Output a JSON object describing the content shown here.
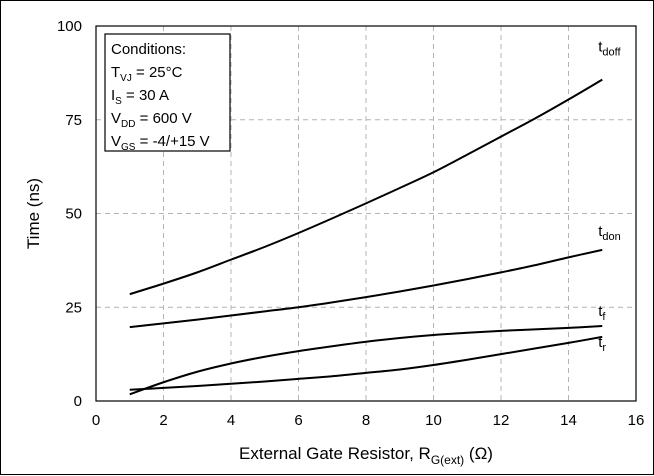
{
  "chart_data": {
    "type": "line",
    "title": "",
    "xlabel": {
      "main": "External Gate Resistor, R",
      "sub": "G(ext)",
      "unit": "(Ω)"
    },
    "ylabel": "Time (ns)",
    "xlim": [
      0,
      16
    ],
    "ylim": [
      0,
      100
    ],
    "xticks": [
      0,
      2,
      4,
      6,
      8,
      10,
      12,
      14,
      16
    ],
    "yticks": [
      0,
      25,
      50,
      75,
      100
    ],
    "grid": true,
    "conditions": [
      {
        "main": "Conditions:",
        "sub": "",
        "rest": ""
      },
      {
        "main": "T",
        "sub": "VJ",
        "rest": " = 25°C"
      },
      {
        "main": "I",
        "sub": "S",
        "rest": " = 30 A"
      },
      {
        "main": "V",
        "sub": "DD",
        "rest": " = 600 V"
      },
      {
        "main": "V",
        "sub": "GS",
        "rest": " = -4/+15 V"
      }
    ],
    "series": [
      {
        "name": "t",
        "sub": "doff",
        "x": [
          1,
          2,
          3,
          4,
          5,
          6,
          7,
          8,
          9,
          10,
          11,
          12,
          13,
          14,
          15
        ],
        "y": [
          28.5,
          31.3,
          34.3,
          37.7,
          41.1,
          44.8,
          48.7,
          52.7,
          56.8,
          61.0,
          65.7,
          70.5,
          75.3,
          80.4,
          85.7
        ]
      },
      {
        "name": "t",
        "sub": "don",
        "x": [
          1,
          2,
          3,
          4,
          5,
          6,
          7,
          8,
          9,
          10,
          11,
          12,
          13,
          14,
          15
        ],
        "y": [
          19.7,
          20.7,
          21.7,
          22.8,
          23.9,
          25.0,
          26.3,
          27.7,
          29.2,
          30.8,
          32.5,
          34.3,
          36.2,
          38.3,
          40.3
        ]
      },
      {
        "name": "t",
        "sub": "f",
        "x": [
          1,
          2,
          3,
          4,
          5,
          6,
          7,
          8,
          9,
          10,
          11,
          12,
          13,
          14,
          15
        ],
        "y": [
          1.8,
          5.0,
          7.8,
          10.0,
          11.8,
          13.3,
          14.6,
          15.8,
          16.8,
          17.6,
          18.2,
          18.7,
          19.1,
          19.5,
          20.0
        ]
      },
      {
        "name": "t",
        "sub": "r",
        "x": [
          1,
          2,
          3,
          4,
          5,
          6,
          7,
          8,
          9,
          10,
          11,
          12,
          13,
          14,
          15
        ],
        "y": [
          3.0,
          3.5,
          4.0,
          4.6,
          5.2,
          5.9,
          6.6,
          7.5,
          8.4,
          9.6,
          11.0,
          12.5,
          14.0,
          15.5,
          17.1
        ]
      }
    ]
  }
}
